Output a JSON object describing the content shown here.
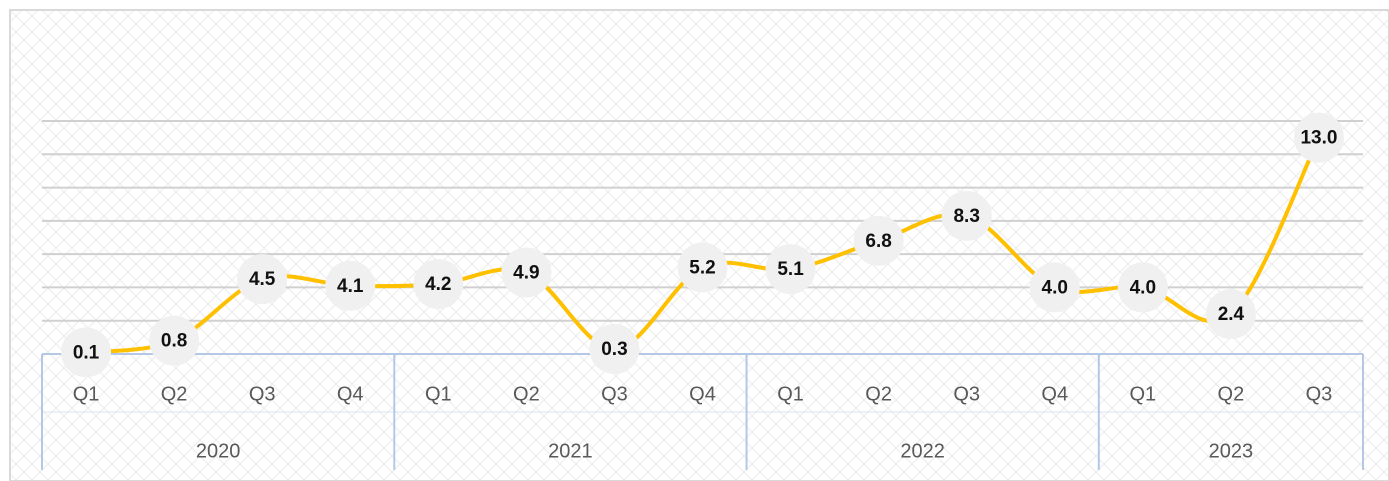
{
  "chart_data": {
    "type": "line",
    "groups": [
      {
        "name": "2020",
        "categories": [
          "Q1",
          "Q2",
          "Q3",
          "Q4"
        ]
      },
      {
        "name": "2021",
        "categories": [
          "Q1",
          "Q2",
          "Q3",
          "Q4"
        ]
      },
      {
        "name": "2022",
        "categories": [
          "Q1",
          "Q2",
          "Q3",
          "Q4"
        ]
      },
      {
        "name": "2023",
        "categories": [
          "Q1",
          "Q2",
          "Q3"
        ]
      }
    ],
    "values": [
      0.1,
      0.8,
      4.5,
      4.1,
      4.2,
      4.9,
      0.3,
      5.2,
      5.1,
      6.8,
      8.3,
      4,
      4,
      2.4,
      13
    ],
    "value_labels": [
      "0.1",
      "0.8",
      "4.5",
      "4.1",
      "4.2",
      "4.9",
      "0.3",
      "5.2",
      "5.1",
      "6.8",
      "8.3",
      "4.0",
      "4.0",
      "2.4",
      "13.0"
    ],
    "color": "#ffc000",
    "ylim": [
      0,
      14
    ],
    "yticks": [
      0,
      2,
      4,
      6,
      8,
      10,
      12,
      14
    ],
    "grid": true
  }
}
